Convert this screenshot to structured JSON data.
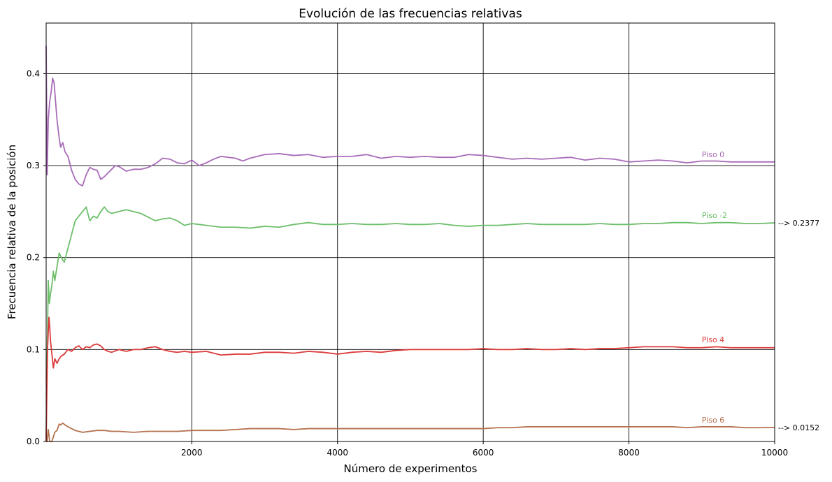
{
  "chart_data": {
    "type": "line",
    "title": "Evolución de las frecuencias relativas",
    "xlabel": "Número de experimentos",
    "ylabel": "Frecuencia relativa de la posición",
    "xlim": [
      1,
      10000
    ],
    "ylim": [
      0,
      0.455
    ],
    "grid": true,
    "xticks": [
      {
        "value": 2000,
        "label": "2000"
      },
      {
        "value": 4000,
        "label": "4000"
      },
      {
        "value": 6000,
        "label": "6000"
      },
      {
        "value": 8000,
        "label": "8000"
      },
      {
        "value": 10000,
        "label": "10000"
      }
    ],
    "yticks": [
      {
        "value": 0.0,
        "label": "0.0"
      },
      {
        "value": 0.1,
        "label": "0.1"
      },
      {
        "value": 0.2,
        "label": "0.2"
      },
      {
        "value": 0.3,
        "label": "0.3"
      },
      {
        "value": 0.4,
        "label": "0.4"
      }
    ],
    "series": [
      {
        "name": "Piso 0",
        "color": "#a86bb8",
        "label_at": [
          9000,
          0.309
        ],
        "x": [
          1,
          15,
          30,
          50,
          70,
          90,
          110,
          130,
          150,
          180,
          200,
          230,
          260,
          300,
          350,
          400,
          450,
          500,
          550,
          600,
          650,
          700,
          750,
          800,
          850,
          900,
          950,
          1000,
          1100,
          1200,
          1300,
          1400,
          1500,
          1600,
          1700,
          1800,
          1900,
          2000,
          2100,
          2200,
          2300,
          2400,
          2500,
          2600,
          2700,
          2800,
          2900,
          3000,
          3200,
          3400,
          3600,
          3800,
          4000,
          4200,
          4400,
          4600,
          4800,
          5000,
          5200,
          5400,
          5600,
          5800,
          6000,
          6200,
          6400,
          6600,
          6800,
          7000,
          7200,
          7400,
          7600,
          7800,
          8000,
          8200,
          8400,
          8600,
          8800,
          9000,
          9200,
          9400,
          9600,
          9800,
          10000
        ],
        "y": [
          0.43,
          0.29,
          0.35,
          0.37,
          0.38,
          0.395,
          0.39,
          0.37,
          0.35,
          0.33,
          0.32,
          0.325,
          0.315,
          0.31,
          0.295,
          0.285,
          0.28,
          0.278,
          0.29,
          0.298,
          0.296,
          0.295,
          0.285,
          0.288,
          0.292,
          0.296,
          0.3,
          0.299,
          0.294,
          0.296,
          0.296,
          0.298,
          0.302,
          0.308,
          0.307,
          0.303,
          0.302,
          0.306,
          0.3,
          0.303,
          0.307,
          0.31,
          0.309,
          0.308,
          0.305,
          0.308,
          0.31,
          0.312,
          0.313,
          0.311,
          0.312,
          0.309,
          0.31,
          0.31,
          0.312,
          0.308,
          0.31,
          0.309,
          0.31,
          0.309,
          0.309,
          0.312,
          0.311,
          0.309,
          0.307,
          0.308,
          0.307,
          0.308,
          0.309,
          0.306,
          0.308,
          0.307,
          0.304,
          0.305,
          0.306,
          0.305,
          0.303,
          0.305,
          0.305,
          0.304,
          0.304,
          0.304,
          0.304
        ]
      },
      {
        "name": "Piso -2",
        "color": "#6dbf6a",
        "label_at": [
          9000,
          0.243
        ],
        "final_label": "--> 0.2377",
        "x": [
          1,
          10,
          20,
          30,
          45,
          60,
          80,
          100,
          120,
          150,
          180,
          210,
          250,
          300,
          350,
          400,
          450,
          500,
          550,
          600,
          650,
          700,
          750,
          800,
          850,
          900,
          1000,
          1100,
          1200,
          1300,
          1400,
          1500,
          1600,
          1700,
          1800,
          1900,
          2000,
          2100,
          2200,
          2400,
          2600,
          2800,
          3000,
          3200,
          3400,
          3600,
          3800,
          4000,
          4200,
          4400,
          4600,
          4800,
          5000,
          5200,
          5400,
          5600,
          5800,
          6000,
          6200,
          6400,
          6600,
          6800,
          7000,
          7200,
          7400,
          7600,
          7800,
          8000,
          8200,
          8400,
          8600,
          8800,
          9000,
          9200,
          9400,
          9600,
          9800,
          10000
        ],
        "y": [
          0.0,
          0.07,
          0.12,
          0.175,
          0.15,
          0.16,
          0.17,
          0.185,
          0.175,
          0.19,
          0.205,
          0.2,
          0.195,
          0.21,
          0.225,
          0.24,
          0.245,
          0.25,
          0.255,
          0.24,
          0.245,
          0.243,
          0.25,
          0.255,
          0.25,
          0.248,
          0.25,
          0.252,
          0.25,
          0.248,
          0.244,
          0.24,
          0.242,
          0.243,
          0.24,
          0.235,
          0.237,
          0.236,
          0.235,
          0.233,
          0.233,
          0.232,
          0.234,
          0.233,
          0.236,
          0.238,
          0.236,
          0.236,
          0.237,
          0.236,
          0.236,
          0.237,
          0.236,
          0.236,
          0.237,
          0.235,
          0.234,
          0.235,
          0.235,
          0.236,
          0.237,
          0.236,
          0.236,
          0.236,
          0.236,
          0.237,
          0.236,
          0.236,
          0.237,
          0.237,
          0.238,
          0.238,
          0.237,
          0.238,
          0.238,
          0.237,
          0.237,
          0.2377
        ]
      },
      {
        "name": "Piso 4",
        "color": "#dd3b3b",
        "label_at": [
          9000,
          0.108
        ],
        "x": [
          1,
          10,
          20,
          30,
          40,
          50,
          60,
          80,
          100,
          120,
          150,
          180,
          210,
          250,
          300,
          350,
          400,
          450,
          500,
          550,
          600,
          650,
          700,
          750,
          800,
          850,
          900,
          1000,
          1100,
          1200,
          1300,
          1400,
          1500,
          1600,
          1700,
          1800,
          1900,
          2000,
          2200,
          2400,
          2600,
          2800,
          3000,
          3200,
          3400,
          3600,
          3800,
          4000,
          4200,
          4400,
          4600,
          4800,
          5000,
          5200,
          5400,
          5600,
          5800,
          6000,
          6200,
          6400,
          6600,
          6800,
          7000,
          7200,
          7400,
          7600,
          7800,
          8000,
          8200,
          8400,
          8600,
          8800,
          9000,
          9200,
          9400,
          9600,
          9800,
          10000
        ],
        "y": [
          0.0,
          0.05,
          0.1,
          0.12,
          0.135,
          0.125,
          0.11,
          0.095,
          0.08,
          0.09,
          0.085,
          0.09,
          0.093,
          0.095,
          0.1,
          0.098,
          0.102,
          0.104,
          0.1,
          0.103,
          0.102,
          0.105,
          0.106,
          0.104,
          0.1,
          0.098,
          0.097,
          0.1,
          0.098,
          0.1,
          0.1,
          0.102,
          0.103,
          0.1,
          0.098,
          0.097,
          0.098,
          0.097,
          0.098,
          0.094,
          0.095,
          0.095,
          0.097,
          0.097,
          0.096,
          0.098,
          0.097,
          0.095,
          0.097,
          0.098,
          0.097,
          0.099,
          0.1,
          0.1,
          0.1,
          0.1,
          0.1,
          0.101,
          0.1,
          0.1,
          0.101,
          0.1,
          0.1,
          0.101,
          0.1,
          0.101,
          0.101,
          0.102,
          0.103,
          0.103,
          0.103,
          0.102,
          0.102,
          0.103,
          0.102,
          0.102,
          0.102,
          0.102
        ]
      },
      {
        "name": "Piso 6",
        "color": "#b5714f",
        "label_at": [
          9000,
          0.0205
        ],
        "final_label": "--> 0.0152",
        "x": [
          1,
          15,
          30,
          50,
          80,
          100,
          120,
          150,
          180,
          200,
          230,
          260,
          300,
          350,
          400,
          450,
          500,
          600,
          700,
          800,
          900,
          1000,
          1200,
          1400,
          1600,
          1800,
          2000,
          2200,
          2400,
          2600,
          2800,
          3000,
          3200,
          3400,
          3600,
          3800,
          4000,
          4200,
          4400,
          4600,
          4800,
          5000,
          5200,
          5400,
          5600,
          5800,
          6000,
          6200,
          6400,
          6600,
          6800,
          7000,
          7200,
          7400,
          7600,
          7800,
          8000,
          8200,
          8400,
          8600,
          8800,
          9000,
          9200,
          9400,
          9600,
          9800,
          10000
        ],
        "y": [
          0.0,
          0.0,
          0.013,
          0.0,
          0.0,
          0.005,
          0.01,
          0.012,
          0.019,
          0.018,
          0.02,
          0.018,
          0.016,
          0.014,
          0.012,
          0.011,
          0.01,
          0.011,
          0.012,
          0.012,
          0.011,
          0.011,
          0.01,
          0.011,
          0.011,
          0.011,
          0.012,
          0.012,
          0.012,
          0.013,
          0.014,
          0.014,
          0.014,
          0.013,
          0.014,
          0.014,
          0.014,
          0.014,
          0.014,
          0.014,
          0.014,
          0.014,
          0.014,
          0.014,
          0.014,
          0.014,
          0.014,
          0.015,
          0.015,
          0.016,
          0.016,
          0.016,
          0.016,
          0.016,
          0.016,
          0.016,
          0.016,
          0.016,
          0.016,
          0.016,
          0.015,
          0.016,
          0.016,
          0.016,
          0.015,
          0.015,
          0.0152
        ]
      }
    ]
  }
}
